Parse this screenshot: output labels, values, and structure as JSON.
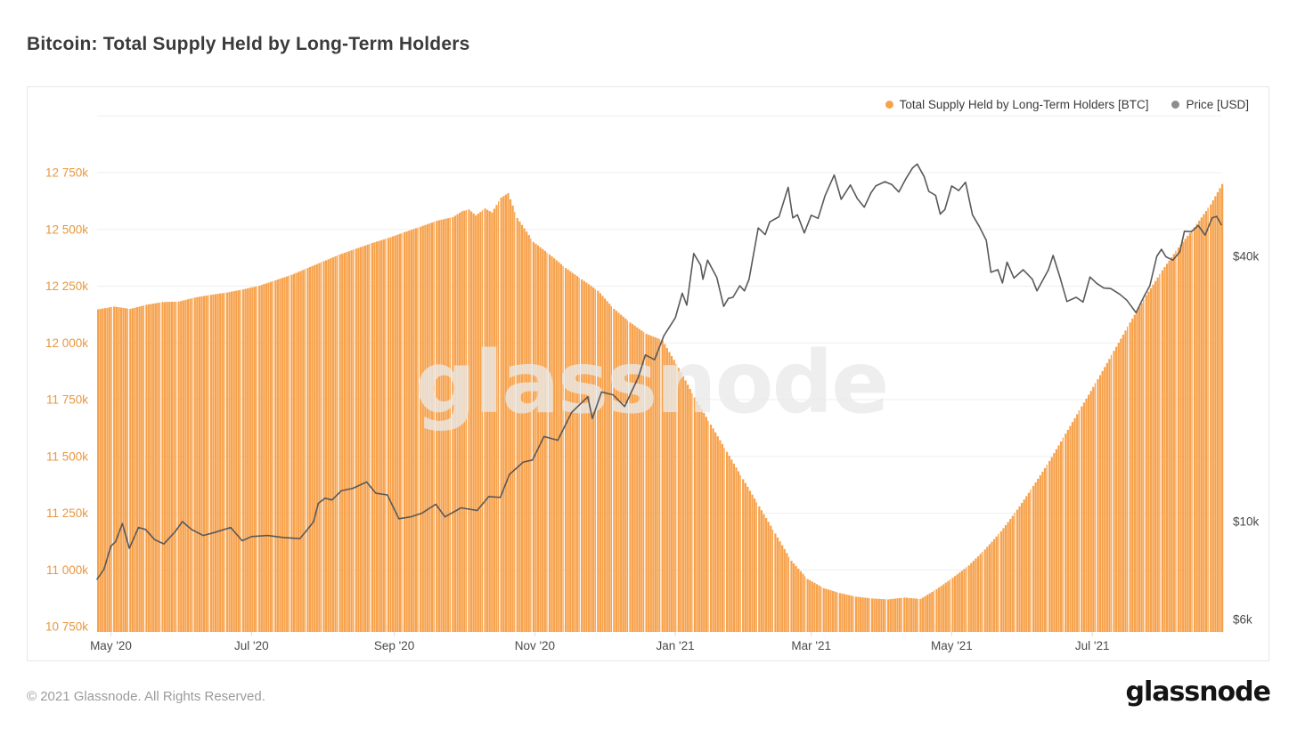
{
  "page": {
    "title": "Bitcoin: Total Supply Held by Long-Term Holders"
  },
  "legend": {
    "items": [
      {
        "label": "Total Supply Held by Long-Term Holders [BTC]",
        "color": "#F7A24C"
      },
      {
        "label": "Price [USD]",
        "color": "#8d8d8d"
      }
    ]
  },
  "watermark": {
    "text": "glassnode",
    "color": "#e9e9e9"
  },
  "footer": {
    "copyright": "© 2021 Glassnode. All Rights Reserved.",
    "brand": "glassnode"
  },
  "chart_data": {
    "type": "bar",
    "title": "Bitcoin: Total Supply Held by Long-Term Holders",
    "x_axis": {
      "start_date": "2020-04-25",
      "end_date": "2021-08-26",
      "total_days": 488,
      "ticks": [
        {
          "day": 6,
          "label": "May '20"
        },
        {
          "day": 67,
          "label": "Jul '20"
        },
        {
          "day": 129,
          "label": "Sep '20"
        },
        {
          "day": 190,
          "label": "Nov '20"
        },
        {
          "day": 251,
          "label": "Jan '21"
        },
        {
          "day": 310,
          "label": "Mar '21"
        },
        {
          "day": 371,
          "label": "May '21"
        },
        {
          "day": 432,
          "label": "Jul '21"
        }
      ]
    },
    "y_left": {
      "unit": "thousand BTC",
      "scale": "linear",
      "range": [
        10750,
        13000
      ],
      "label_color": "#E8973E",
      "ticks": [
        {
          "value": 13000,
          "label": ""
        },
        {
          "value": 12750,
          "label": "12 750k"
        },
        {
          "value": 12500,
          "label": "12 500k"
        },
        {
          "value": 12250,
          "label": "12 250k"
        },
        {
          "value": 12000,
          "label": "12 000k"
        },
        {
          "value": 11750,
          "label": "11 750k"
        },
        {
          "value": 11500,
          "label": "11 500k"
        },
        {
          "value": 11250,
          "label": "11 250k"
        },
        {
          "value": 11000,
          "label": "11 000k"
        },
        {
          "value": 10750,
          "label": "10 750k"
        }
      ]
    },
    "y_right": {
      "unit": "USD (thousands)",
      "scale": "log",
      "label_color": "#4a4a4a",
      "ticks": [
        {
          "value": 40,
          "label": "$40k"
        },
        {
          "value": 10,
          "label": "$10k"
        },
        {
          "value": 6,
          "label": "$6k"
        }
      ]
    },
    "grid": "horizontal-only",
    "legend_position": "top-right",
    "series": [
      {
        "name": "Total Supply Held by Long-Term Holders [BTC]",
        "type": "bar",
        "axis": "left",
        "color": "#F7A24C",
        "unit": "thousand BTC",
        "points_day_value": [
          [
            0,
            12148
          ],
          [
            7,
            12160
          ],
          [
            14,
            12150
          ],
          [
            21,
            12168
          ],
          [
            28,
            12180
          ],
          [
            35,
            12182
          ],
          [
            42,
            12200
          ],
          [
            49,
            12212
          ],
          [
            56,
            12222
          ],
          [
            63,
            12236
          ],
          [
            70,
            12252
          ],
          [
            77,
            12276
          ],
          [
            84,
            12300
          ],
          [
            91,
            12330
          ],
          [
            98,
            12360
          ],
          [
            105,
            12390
          ],
          [
            112,
            12415
          ],
          [
            119,
            12440
          ],
          [
            126,
            12462
          ],
          [
            133,
            12488
          ],
          [
            140,
            12512
          ],
          [
            147,
            12538
          ],
          [
            154,
            12554
          ],
          [
            158,
            12580
          ],
          [
            161,
            12588
          ],
          [
            164,
            12562
          ],
          [
            168,
            12592
          ],
          [
            171,
            12575
          ],
          [
            175,
            12640
          ],
          [
            178,
            12660
          ],
          [
            182,
            12550
          ],
          [
            189,
            12445
          ],
          [
            196,
            12390
          ],
          [
            203,
            12330
          ],
          [
            210,
            12280
          ],
          [
            217,
            12230
          ],
          [
            224,
            12150
          ],
          [
            231,
            12090
          ],
          [
            238,
            12040
          ],
          [
            245,
            12012
          ],
          [
            252,
            11890
          ],
          [
            259,
            11760
          ],
          [
            266,
            11640
          ],
          [
            273,
            11520
          ],
          [
            280,
            11400
          ],
          [
            287,
            11280
          ],
          [
            294,
            11160
          ],
          [
            301,
            11040
          ],
          [
            308,
            10960
          ],
          [
            315,
            10920
          ],
          [
            322,
            10898
          ],
          [
            329,
            10882
          ],
          [
            336,
            10874
          ],
          [
            343,
            10870
          ],
          [
            350,
            10878
          ],
          [
            357,
            10872
          ],
          [
            364,
            10915
          ],
          [
            371,
            10965
          ],
          [
            378,
            11020
          ],
          [
            385,
            11090
          ],
          [
            392,
            11170
          ],
          [
            399,
            11265
          ],
          [
            406,
            11370
          ],
          [
            413,
            11480
          ],
          [
            420,
            11600
          ],
          [
            427,
            11720
          ],
          [
            434,
            11840
          ],
          [
            441,
            11965
          ],
          [
            448,
            12090
          ],
          [
            455,
            12210
          ],
          [
            462,
            12320
          ],
          [
            469,
            12420
          ],
          [
            476,
            12510
          ],
          [
            483,
            12610
          ],
          [
            488,
            12700
          ]
        ]
      },
      {
        "name": "Price [USD]",
        "type": "line",
        "axis": "right",
        "color": "#58595B",
        "unit": "USD (thousands)",
        "points_day_value": [
          [
            0,
            7.4
          ],
          [
            3,
            7.8
          ],
          [
            6,
            8.8
          ],
          [
            8,
            9.0
          ],
          [
            11,
            9.9
          ],
          [
            14,
            8.7
          ],
          [
            18,
            9.7
          ],
          [
            21,
            9.6
          ],
          [
            25,
            9.1
          ],
          [
            29,
            8.9
          ],
          [
            34,
            9.5
          ],
          [
            37,
            10.0
          ],
          [
            41,
            9.6
          ],
          [
            46,
            9.3
          ],
          [
            51,
            9.45
          ],
          [
            58,
            9.7
          ],
          [
            63,
            9.05
          ],
          [
            67,
            9.25
          ],
          [
            74,
            9.3
          ],
          [
            81,
            9.2
          ],
          [
            88,
            9.15
          ],
          [
            91,
            9.55
          ],
          [
            94,
            10.0
          ],
          [
            96,
            11.0
          ],
          [
            99,
            11.3
          ],
          [
            102,
            11.2
          ],
          [
            106,
            11.75
          ],
          [
            111,
            11.9
          ],
          [
            117,
            12.3
          ],
          [
            121,
            11.6
          ],
          [
            126,
            11.5
          ],
          [
            131,
            10.15
          ],
          [
            136,
            10.25
          ],
          [
            141,
            10.45
          ],
          [
            147,
            10.95
          ],
          [
            151,
            10.25
          ],
          [
            158,
            10.75
          ],
          [
            165,
            10.6
          ],
          [
            170,
            11.4
          ],
          [
            175,
            11.35
          ],
          [
            179,
            12.8
          ],
          [
            185,
            13.65
          ],
          [
            189,
            13.8
          ],
          [
            194,
            15.6
          ],
          [
            200,
            15.3
          ],
          [
            206,
            17.7
          ],
          [
            213,
            19.2
          ],
          [
            215,
            17.15
          ],
          [
            219,
            19.7
          ],
          [
            224,
            19.4
          ],
          [
            229,
            18.25
          ],
          [
            235,
            21.3
          ],
          [
            238,
            23.9
          ],
          [
            242,
            23.3
          ],
          [
            246,
            26.4
          ],
          [
            251,
            29.0
          ],
          [
            254,
            33.0
          ],
          [
            256,
            31.0
          ],
          [
            259,
            40.6
          ],
          [
            262,
            38.2
          ],
          [
            263,
            35.5
          ],
          [
            265,
            39.2
          ],
          [
            269,
            35.8
          ],
          [
            272,
            30.8
          ],
          [
            274,
            32.1
          ],
          [
            276,
            32.3
          ],
          [
            279,
            34.3
          ],
          [
            281,
            33.4
          ],
          [
            283,
            35.5
          ],
          [
            287,
            46.4
          ],
          [
            290,
            44.8
          ],
          [
            292,
            47.9
          ],
          [
            296,
            49.2
          ],
          [
            300,
            57.4
          ],
          [
            302,
            48.9
          ],
          [
            304,
            49.7
          ],
          [
            307,
            45.2
          ],
          [
            310,
            49.6
          ],
          [
            313,
            48.8
          ],
          [
            316,
            54.9
          ],
          [
            320,
            61.2
          ],
          [
            323,
            53.9
          ],
          [
            327,
            58.1
          ],
          [
            330,
            54.1
          ],
          [
            333,
            51.7
          ],
          [
            336,
            55.8
          ],
          [
            338,
            57.8
          ],
          [
            342,
            59.1
          ],
          [
            345,
            58.2
          ],
          [
            348,
            56.0
          ],
          [
            351,
            59.9
          ],
          [
            354,
            63.5
          ],
          [
            356,
            64.8
          ],
          [
            359,
            60.7
          ],
          [
            361,
            56.2
          ],
          [
            364,
            55.0
          ],
          [
            366,
            49.9
          ],
          [
            368,
            51.1
          ],
          [
            371,
            57.8
          ],
          [
            374,
            56.4
          ],
          [
            377,
            58.9
          ],
          [
            380,
            49.7
          ],
          [
            383,
            46.7
          ],
          [
            386,
            43.5
          ],
          [
            388,
            36.8
          ],
          [
            391,
            37.3
          ],
          [
            393,
            34.8
          ],
          [
            395,
            38.8
          ],
          [
            398,
            35.7
          ],
          [
            402,
            37.3
          ],
          [
            406,
            35.5
          ],
          [
            408,
            33.4
          ],
          [
            413,
            37.3
          ],
          [
            415,
            40.2
          ],
          [
            418,
            35.8
          ],
          [
            421,
            31.6
          ],
          [
            425,
            32.3
          ],
          [
            428,
            31.5
          ],
          [
            431,
            35.9
          ],
          [
            434,
            34.7
          ],
          [
            437,
            33.9
          ],
          [
            440,
            33.8
          ],
          [
            444,
            32.8
          ],
          [
            447,
            31.8
          ],
          [
            451,
            29.8
          ],
          [
            454,
            32.1
          ],
          [
            457,
            34.3
          ],
          [
            460,
            40.0
          ],
          [
            462,
            41.5
          ],
          [
            464,
            39.9
          ],
          [
            467,
            39.2
          ],
          [
            470,
            41.0
          ],
          [
            472,
            45.6
          ],
          [
            475,
            45.5
          ],
          [
            478,
            47.0
          ],
          [
            481,
            44.7
          ],
          [
            484,
            48.9
          ],
          [
            486,
            49.3
          ],
          [
            488,
            47.2
          ]
        ]
      }
    ]
  }
}
